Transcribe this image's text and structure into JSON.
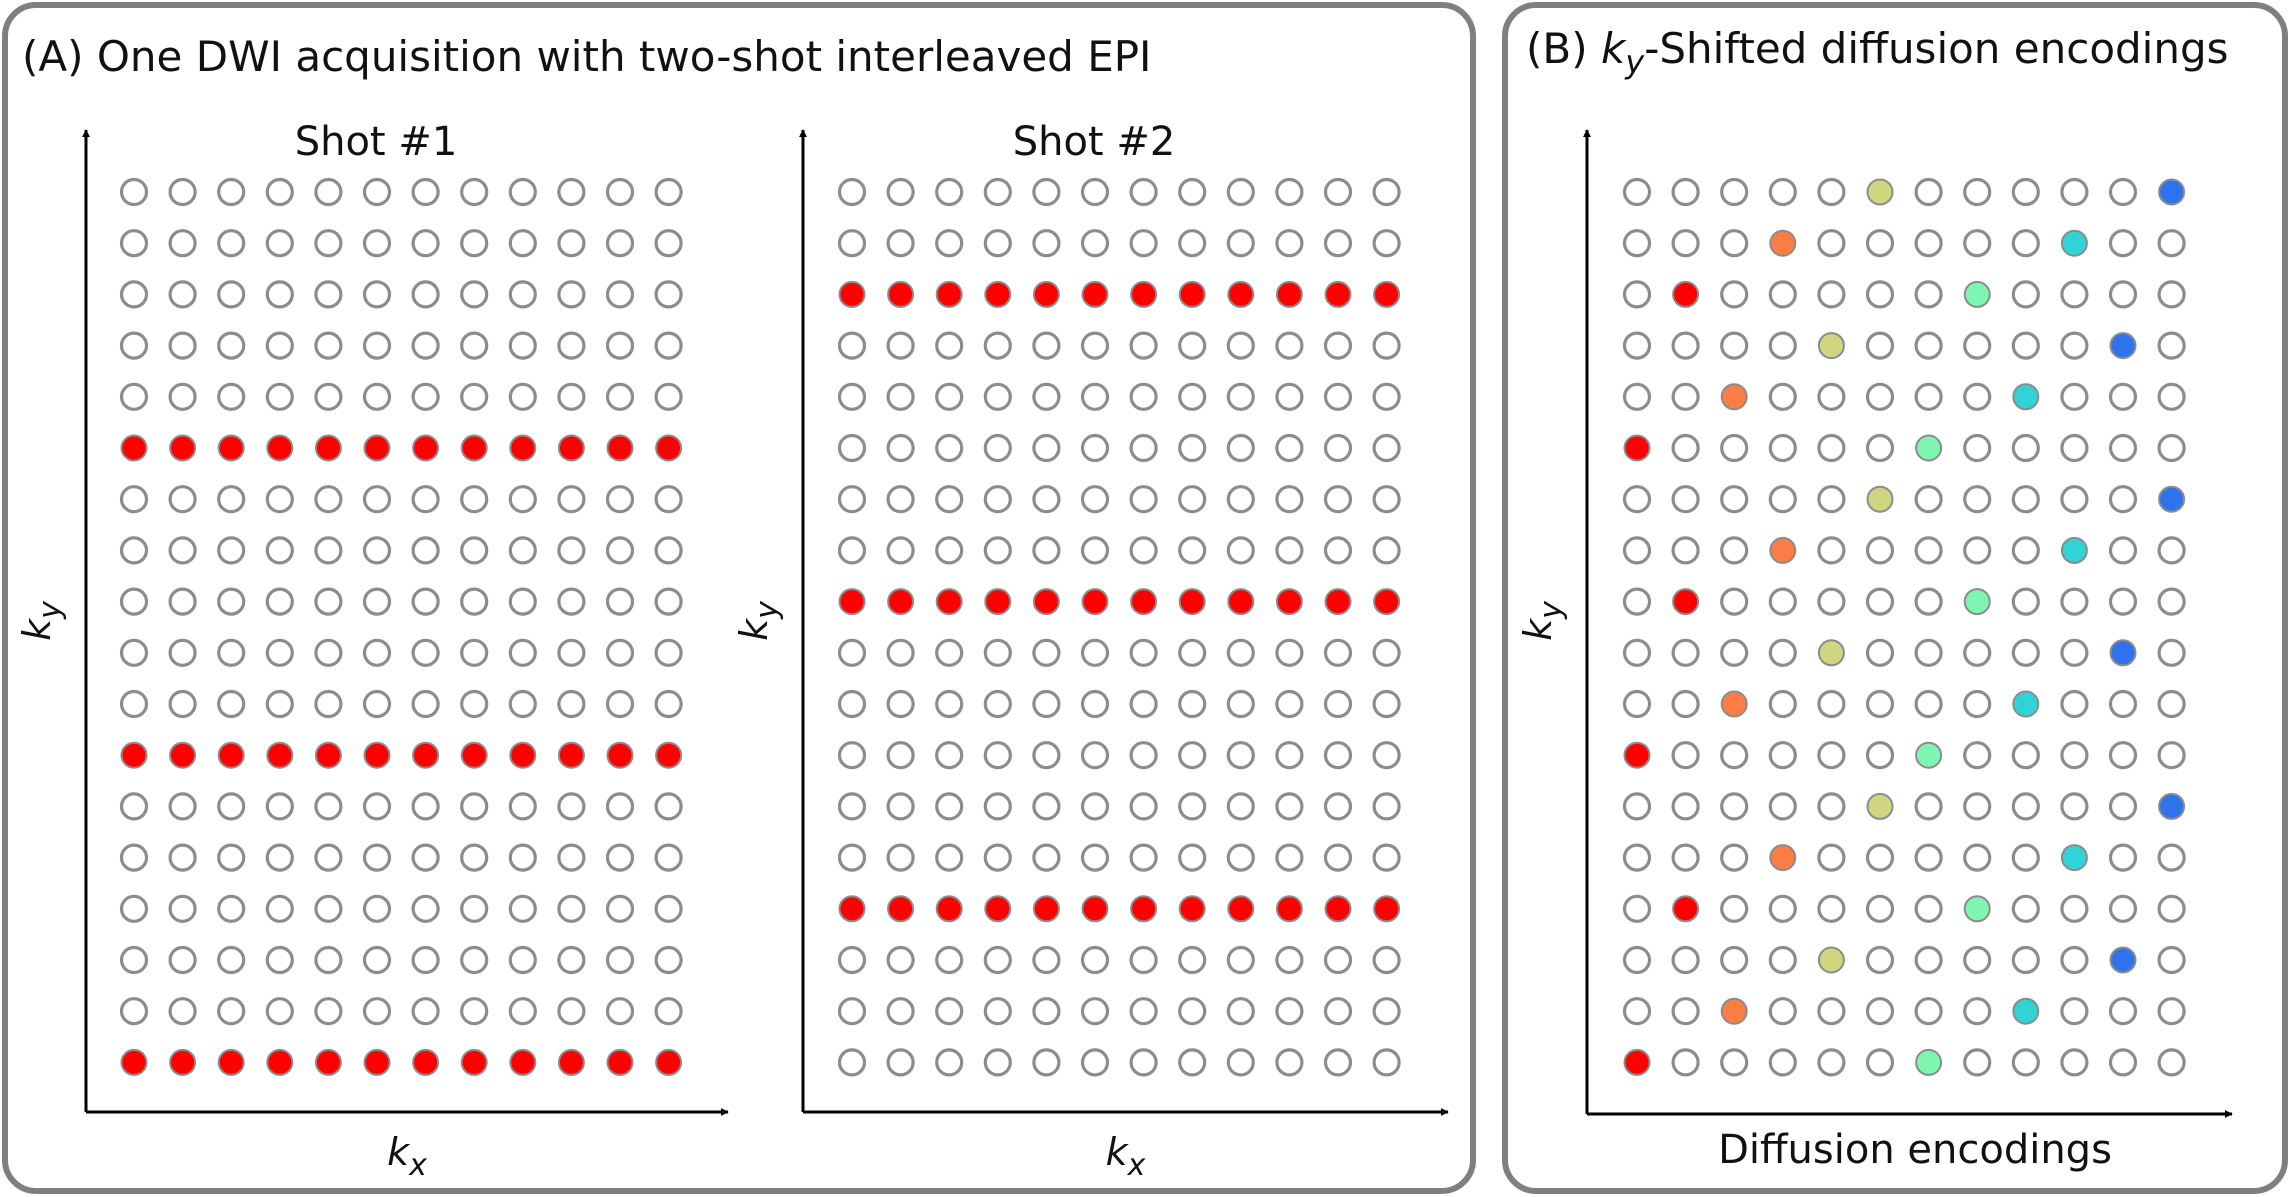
{
  "panel_a": {
    "title": "(A) One DWI acquisition with two-shot interleaved EPI",
    "plots": [
      {
        "title": "Shot #1",
        "xlabel_main": "k",
        "xlabel_sub": "x",
        "ylabel_main": "k",
        "ylabel_sub": "y",
        "columns": 12,
        "rows": 18,
        "filled_rows": [
          6,
          12,
          18
        ]
      },
      {
        "title": "Shot #2",
        "xlabel_main": "k",
        "xlabel_sub": "x",
        "ylabel_main": "k",
        "ylabel_sub": "y",
        "columns": 12,
        "rows": 18,
        "filled_rows": [
          3,
          9,
          15
        ]
      }
    ]
  },
  "panel_b": {
    "title_prefix": "(B) ",
    "title_k": "k",
    "title_sub": "y",
    "title_rest": "-Shifted diffusion encodings",
    "plot": {
      "xlabel": "Diffusion encodings",
      "ylabel_main": "k",
      "ylabel_sub": "y",
      "columns": 12,
      "rows": 18,
      "filled_cells": [
        {
          "col": 1,
          "rows": [
            6,
            12,
            18
          ],
          "color": "#ff0000"
        },
        {
          "col": 2,
          "rows": [
            3,
            9,
            15
          ],
          "color": "#ff0000"
        },
        {
          "col": 3,
          "rows": [
            5,
            11,
            17
          ],
          "color": "#f97d45"
        },
        {
          "col": 4,
          "rows": [
            2,
            8,
            14
          ],
          "color": "#f97d45"
        },
        {
          "col": 5,
          "rows": [
            4,
            10,
            16
          ],
          "color": "#cfd67f"
        },
        {
          "col": 6,
          "rows": [
            1,
            7,
            13
          ],
          "color": "#cfd67f"
        },
        {
          "col": 7,
          "rows": [
            6,
            12,
            18
          ],
          "color": "#7ff5b2"
        },
        {
          "col": 8,
          "rows": [
            3,
            9,
            15
          ],
          "color": "#7ff5b2"
        },
        {
          "col": 9,
          "rows": [
            5,
            11,
            17
          ],
          "color": "#30d4d6"
        },
        {
          "col": 10,
          "rows": [
            2,
            8,
            14
          ],
          "color": "#30d4d6"
        },
        {
          "col": 11,
          "rows": [
            4,
            10,
            16
          ],
          "color": "#2f72ee"
        },
        {
          "col": 12,
          "rows": [
            1,
            7,
            13
          ],
          "color": "#2f72ee"
        }
      ]
    }
  },
  "colors": {
    "frame": "#7f7f7f",
    "open_circle_stroke": "#8c8c8c",
    "shot_fill": "#ff0000",
    "axis": "#000000"
  }
}
